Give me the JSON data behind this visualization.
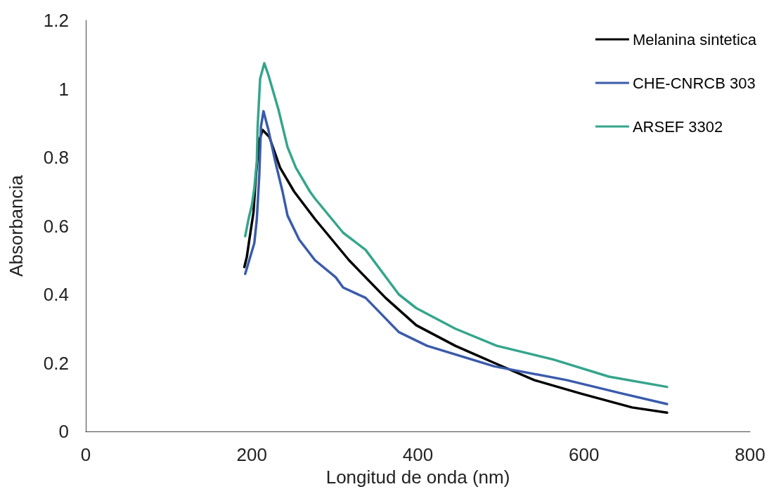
{
  "chart_data": {
    "type": "line",
    "xlabel": "Longitud de onda (nm)",
    "ylabel": "Absorbancia",
    "xlim": [
      0,
      800
    ],
    "xticks": [
      0,
      200,
      400,
      600,
      800
    ],
    "ylim": [
      0,
      1.2
    ],
    "yticks": [
      0,
      0.2,
      0.4,
      0.6,
      0.8,
      1,
      1.2
    ],
    "grid": false,
    "legend": "top right",
    "marker": "none",
    "line_style": "solid",
    "series": [
      {
        "name": "Melanina sintetica",
        "color": "#000000",
        "x": [
          191,
          194,
          197,
          202,
          205,
          209,
          213,
          221,
          234,
          251,
          276,
          317,
          361,
          398,
          445,
          492,
          540,
          597,
          658,
          700
        ],
        "values": [
          0.48,
          0.51,
          0.56,
          0.64,
          0.75,
          0.85,
          0.88,
          0.86,
          0.77,
          0.7,
          0.62,
          0.5,
          0.39,
          0.31,
          0.25,
          0.2,
          0.15,
          0.11,
          0.07,
          0.055
        ]
      },
      {
        "name": "CHE-CNRCB 303",
        "color": "#3a5bab",
        "x": [
          192,
          203,
          206,
          209,
          211,
          214,
          220,
          228,
          237,
          243,
          257,
          276,
          301,
          310,
          337,
          377,
          411,
          492,
          579,
          647,
          700
        ],
        "values": [
          0.46,
          0.55,
          0.62,
          0.75,
          0.89,
          0.935,
          0.88,
          0.79,
          0.7,
          0.63,
          0.56,
          0.5,
          0.45,
          0.42,
          0.39,
          0.29,
          0.25,
          0.19,
          0.15,
          0.11,
          0.08
        ]
      },
      {
        "name": "ARSEF 3302",
        "color": "#35a58c",
        "x": [
          192,
          196,
          200,
          203,
          206,
          207,
          210,
          215,
          220,
          232,
          243,
          253,
          270,
          276,
          310,
          337,
          377,
          398,
          445,
          495,
          563,
          630,
          700
        ],
        "values": [
          0.57,
          0.62,
          0.66,
          0.71,
          0.79,
          0.89,
          1.03,
          1.075,
          1.04,
          0.94,
          0.83,
          0.77,
          0.7,
          0.68,
          0.58,
          0.53,
          0.4,
          0.36,
          0.3,
          0.25,
          0.21,
          0.16,
          0.13
        ]
      }
    ]
  }
}
